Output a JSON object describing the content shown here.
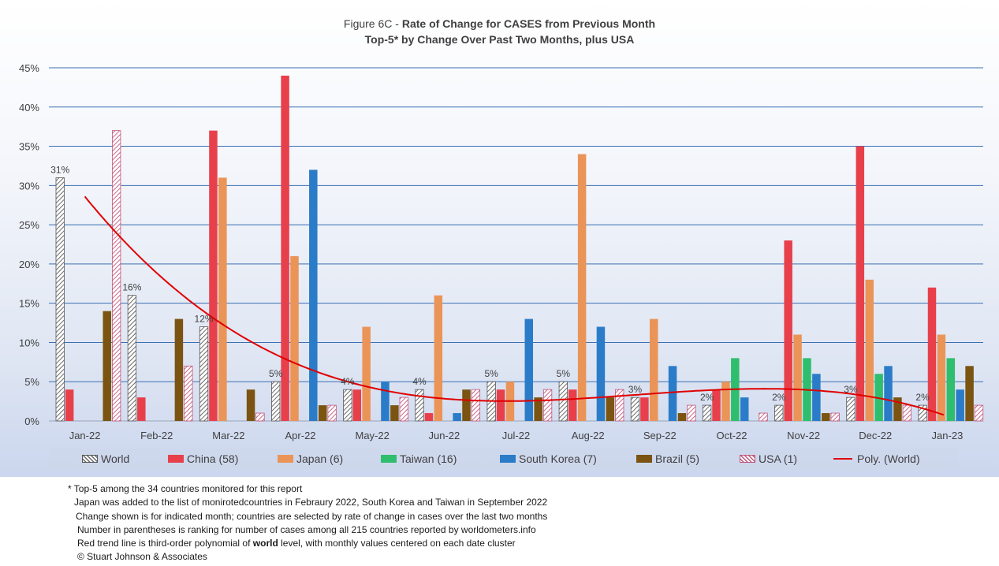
{
  "title": {
    "prefix": "Figure 6C - ",
    "main": "Rate of Change for CASES from Previous Month",
    "subtitle": "Top-5* by Change Over Past Two Months, plus USA"
  },
  "chart_data": {
    "type": "bar",
    "categories": [
      "Jan-22",
      "Feb-22",
      "Mar-22",
      "Apr-22",
      "May-22",
      "Jun-22",
      "Jul-22",
      "Aug-22",
      "Sep-22",
      "Oct-22",
      "Nov-22",
      "Dec-22",
      "Jan-23"
    ],
    "ylim": [
      0,
      45
    ],
    "yticks": [
      "0%",
      "5%",
      "10%",
      "15%",
      "20%",
      "25%",
      "30%",
      "35%",
      "40%",
      "45%"
    ],
    "grid": true,
    "legend_position": "bottom",
    "series": [
      {
        "name": "World",
        "color": "#7f7f7f",
        "pattern": "hatch",
        "values": [
          31,
          16,
          12,
          5,
          4,
          4,
          5,
          5,
          3,
          2,
          2,
          3,
          2
        ]
      },
      {
        "name": "China (58)",
        "color": "#e8404b",
        "values": [
          4,
          3,
          37,
          44,
          4,
          1,
          4,
          4,
          3,
          4,
          23,
          35,
          17
        ]
      },
      {
        "name": "Japan (6)",
        "color": "#eb9458",
        "values": [
          null,
          null,
          31,
          21,
          12,
          16,
          5,
          34,
          13,
          5,
          11,
          18,
          11
        ]
      },
      {
        "name": "Taiwan (16)",
        "color": "#2fbe6e",
        "values": [
          null,
          null,
          null,
          null,
          null,
          null,
          null,
          null,
          null,
          8,
          8,
          6,
          8
        ]
      },
      {
        "name": "South Korea (7)",
        "color": "#2b7cc8",
        "values": [
          null,
          null,
          null,
          32,
          5,
          1,
          13,
          12,
          7,
          3,
          6,
          7,
          4
        ]
      },
      {
        "name": "Brazil (5)",
        "color": "#7a5410",
        "values": [
          14,
          13,
          4,
          2,
          2,
          4,
          3,
          3,
          1,
          null,
          1,
          3,
          7
        ]
      },
      {
        "name": "USA (1)",
        "color": "#c0567a",
        "pattern": "hatch",
        "values": [
          37,
          7,
          1,
          2,
          3,
          4,
          4,
          4,
          2,
          1,
          1,
          2,
          2
        ]
      }
    ],
    "data_labels": [
      "31%",
      "16%",
      "12%",
      "5%",
      "4%",
      "4%",
      "5%",
      "5%",
      "3%",
      "2%",
      "2%",
      "3%",
      "2%"
    ],
    "trendline": {
      "name": "Poly. (World)",
      "type": "polynomial order 3",
      "color": "#e00000"
    }
  },
  "notes": [
    "* Top-5 among the 34 countries monitored for this report",
    "Japan was added to the list of monirotedcountries in Febraury 2022, South Korea and Taiwan in September 2022",
    "Change shown is for indicated month; countries are selected by rate of change in cases over the last two months",
    "Number in parentheses is ranking for number of cases among all 215 countries reported by worldometers.info",
    {
      "pre": "Red trend line is third-order polynomial of ",
      "bold": "world",
      "post": " level, with monthly values centered on each date cluster"
    },
    "© Stuart Johnson & Associates"
  ]
}
